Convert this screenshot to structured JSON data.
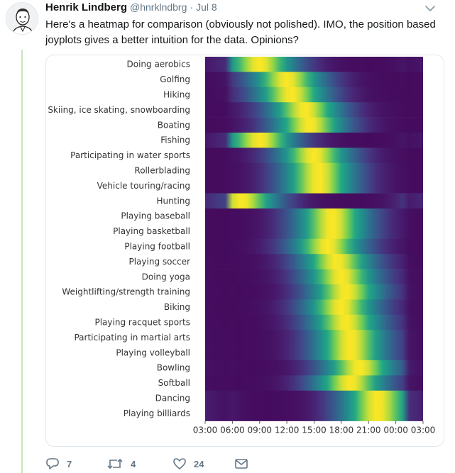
{
  "tweet": {
    "author_name": "Henrik Lindberg",
    "handle": "@hnrklndbrg",
    "separator": "·",
    "date": "Jul 8",
    "text": "Here's a heatmap for comparison (obviously not polished). IMO, the position based joyplots gives a better intuition for the data. Opinions?",
    "avatar_icon": "person-avatar-icon",
    "menu_icon": "chevron-down-icon"
  },
  "actions": {
    "reply_count": "7",
    "retweet_count": "4",
    "like_count": "24",
    "reply_icon": "reply-icon",
    "retweet_icon": "retweet-icon",
    "like_icon": "heart-icon",
    "dm_icon": "envelope-icon"
  },
  "colors": {
    "thread_line": "#c4e7b8",
    "muted_text": "#657786",
    "colormap": "viridis"
  },
  "chart_data": {
    "type": "heatmap",
    "title": "",
    "xlabel": "",
    "ylabel": "",
    "x_ticks": [
      "03:00",
      "06:00",
      "09:00",
      "12:00",
      "15:00",
      "18:00",
      "21:00",
      "00:00",
      "03:00"
    ],
    "rows": [
      {
        "label": "Doing aerobics",
        "peak": "09:00"
      },
      {
        "label": "Golfing",
        "peak": "12:00"
      },
      {
        "label": "Hiking",
        "peak": "12:30"
      },
      {
        "label": "Skiing, ice skating, snowboarding",
        "peak": "14:00"
      },
      {
        "label": "Boating",
        "peak": "14:30"
      },
      {
        "label": "Fishing",
        "peak": "09:00"
      },
      {
        "label": "Participating in water sports",
        "peak": "15:00"
      },
      {
        "label": "Rollerblading",
        "peak": "15:30"
      },
      {
        "label": "Vehicle touring/racing",
        "peak": "15:30"
      },
      {
        "label": "Hunting",
        "peak": "07:00"
      },
      {
        "label": "Playing baseball",
        "peak": "17:00"
      },
      {
        "label": "Playing basketball",
        "peak": "17:00"
      },
      {
        "label": "Playing football",
        "peak": "16:30"
      },
      {
        "label": "Playing soccer",
        "peak": "17:30"
      },
      {
        "label": "Doing yoga",
        "peak": "18:00"
      },
      {
        "label": "Weightlifting/strength training",
        "peak": "18:30"
      },
      {
        "label": "Biking",
        "peak": "18:00"
      },
      {
        "label": "Playing racquet sports",
        "peak": "18:30"
      },
      {
        "label": "Participating in martial arts",
        "peak": "19:00"
      },
      {
        "label": "Playing volleyball",
        "peak": "19:00"
      },
      {
        "label": "Bowling",
        "peak": "20:00"
      },
      {
        "label": "Softball",
        "peak": "19:00"
      },
      {
        "label": "Dancing",
        "peak": "22:00"
      },
      {
        "label": "Playing billiards",
        "peak": "22:00"
      }
    ],
    "color_scale": "viridis (dark purple = low, yellow = high)",
    "legend": "none"
  }
}
